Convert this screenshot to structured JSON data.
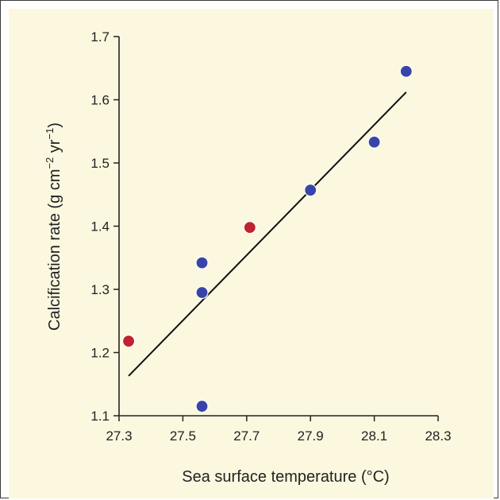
{
  "chart_data": {
    "type": "scatter",
    "title": "",
    "xlabel": "Sea surface temperature (°C)",
    "ylabel_main": "Calcification rate (g cm",
    "ylabel_exp1": "−2",
    "ylabel_mid": " yr",
    "ylabel_exp2": "−1",
    "ylabel_end": ")",
    "xlim": [
      27.3,
      28.3
    ],
    "ylim": [
      1.1,
      1.7
    ],
    "x_ticks": [
      "27.3",
      "27.5",
      "27.7",
      "27.9",
      "28.1",
      "28.3"
    ],
    "y_ticks": [
      "1.1",
      "1.2",
      "1.3",
      "1.4",
      "1.5",
      "1.6",
      "1.7"
    ],
    "grid": false,
    "series": [
      {
        "color": "#3a44a8",
        "points": [
          {
            "x": 27.56,
            "y": 1.115
          },
          {
            "x": 27.56,
            "y": 1.295
          },
          {
            "x": 27.56,
            "y": 1.342
          },
          {
            "x": 27.9,
            "y": 1.457
          },
          {
            "x": 28.1,
            "y": 1.533
          },
          {
            "x": 28.2,
            "y": 1.645
          }
        ]
      },
      {
        "color": "#c0222f",
        "points": [
          {
            "x": 27.33,
            "y": 1.218
          },
          {
            "x": 27.71,
            "y": 1.398
          }
        ]
      }
    ],
    "trendline": {
      "x": [
        27.33,
        28.2
      ],
      "y": [
        1.163,
        1.612
      ],
      "color": "#111111"
    }
  }
}
